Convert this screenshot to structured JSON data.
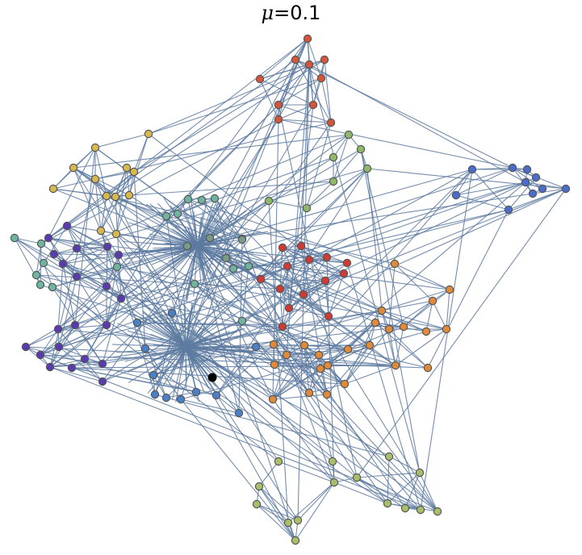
{
  "title": {
    "symbol": "μ",
    "text": "=0.1"
  },
  "graph": {
    "edge_color": "#5d7aa0",
    "highlight_node_color": "#000000",
    "community_colors": {
      "red_top": "#d4553a",
      "green": "#8fb86a",
      "blue_right": "#4a6ccc",
      "teal": "#6fb4a0",
      "yellow": "#d8b850",
      "purple": "#5a3ab0",
      "crimson": "#d03a35",
      "orange": "#e08a3a",
      "olive": "#a8be6a",
      "hub_upper": "#7a9a8a",
      "hub_lower": "#4a80c8"
    }
  }
}
